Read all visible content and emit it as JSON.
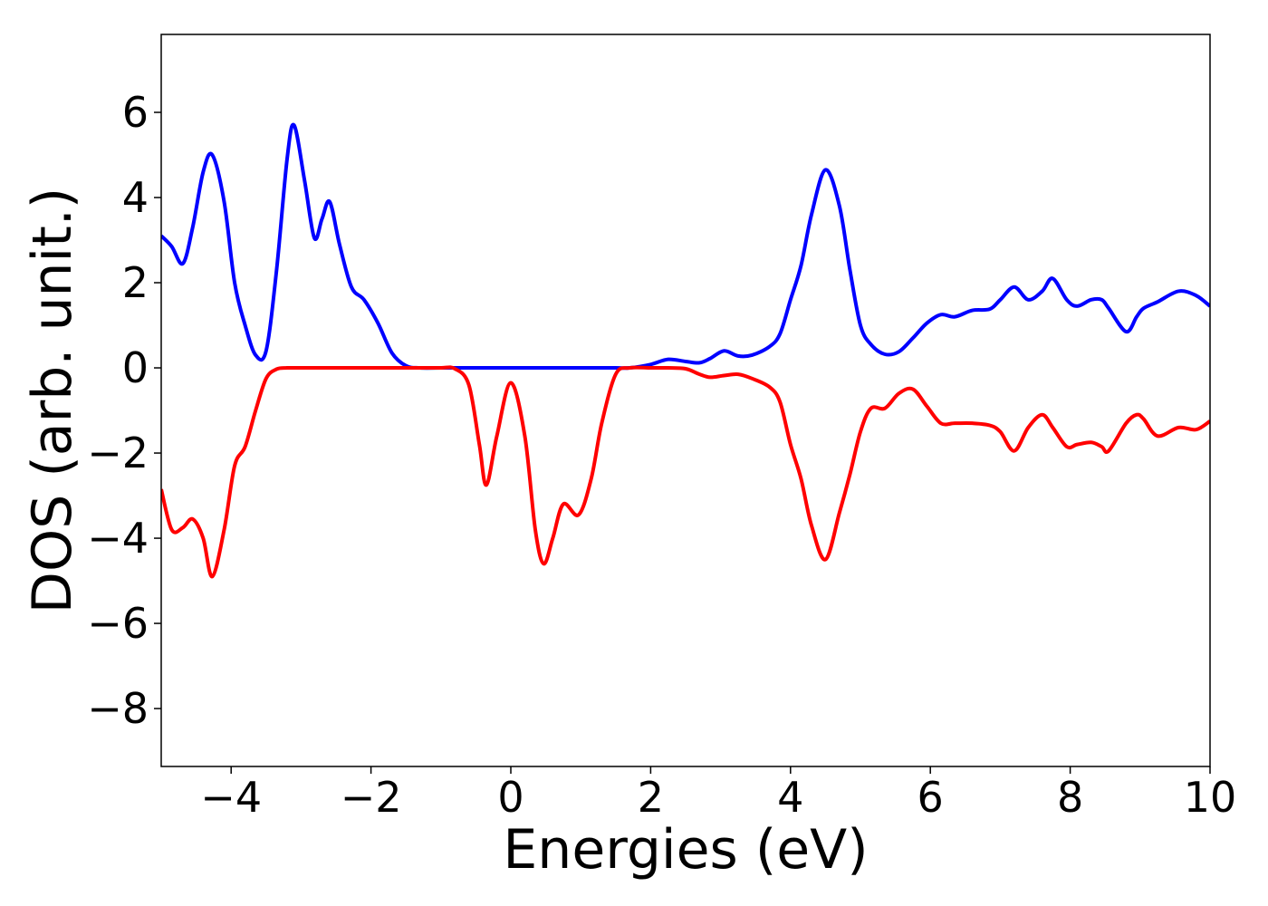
{
  "chart_data": {
    "type": "line",
    "xlabel": "Energies (eV)",
    "ylabel": "DOS (arb. unit.)",
    "x": [
      -5,
      -4.85,
      -4.69,
      -4.55,
      -4.4,
      -4.27,
      -4.1,
      -3.95,
      -3.8,
      -3.65,
      -3.5,
      -3.35,
      -3.2,
      -3.1,
      -2.95,
      -2.81,
      -2.7,
      -2.59,
      -2.45,
      -2.28,
      -2.1,
      -1.9,
      -1.7,
      -1.5,
      -1.3,
      -1,
      -0.8,
      -0.6,
      -0.45,
      -0.35,
      -0.2,
      0,
      0.2,
      0.35,
      0.47,
      0.6,
      0.75,
      0.97,
      1.15,
      1.3,
      1.5,
      1.7,
      2,
      2.25,
      2.5,
      2.7,
      2.85,
      3.05,
      3.25,
      3.45,
      3.7,
      3.85,
      4,
      4.15,
      4.3,
      4.5,
      4.7,
      4.85,
      5,
      5.15,
      5.35,
      5.55,
      5.75,
      5.95,
      6.15,
      6.35,
      6.6,
      6.85,
      7,
      7.2,
      7.4,
      7.6,
      7.75,
      7.95,
      8.1,
      8.3,
      8.45,
      8.55,
      8.8,
      8.95,
      9.05,
      9.25,
      9.55,
      9.8,
      10
    ],
    "series": [
      {
        "color": "#0000ff",
        "values": [
          3.1,
          2.85,
          2.45,
          3.3,
          4.6,
          5.0,
          3.9,
          2.0,
          1.0,
          0.3,
          0.4,
          2.3,
          4.9,
          5.7,
          4.4,
          3.05,
          3.5,
          3.9,
          2.9,
          1.9,
          1.6,
          1.05,
          0.35,
          0.05,
          0,
          0,
          0,
          0,
          0,
          0,
          0,
          0,
          0,
          0,
          0,
          0,
          0,
          0,
          0,
          0,
          0,
          0,
          0.08,
          0.2,
          0.15,
          0.12,
          0.22,
          0.4,
          0.28,
          0.3,
          0.5,
          0.8,
          1.6,
          2.4,
          3.6,
          4.65,
          3.8,
          2.3,
          1.0,
          0.55,
          0.32,
          0.38,
          0.7,
          1.05,
          1.25,
          1.2,
          1.35,
          1.38,
          1.6,
          1.9,
          1.6,
          1.8,
          2.1,
          1.6,
          1.45,
          1.6,
          1.6,
          1.4,
          0.85,
          1.2,
          1.4,
          1.55,
          1.8,
          1.7,
          1.45
        ]
      },
      {
        "color": "#ff0000",
        "values": [
          -2.85,
          -3.8,
          -3.75,
          -3.55,
          -4.0,
          -4.9,
          -3.8,
          -2.3,
          -1.85,
          -1.0,
          -0.25,
          -0.03,
          0,
          0,
          0,
          0,
          0,
          0,
          0,
          0,
          0,
          0,
          0,
          0,
          0,
          0,
          -0.02,
          -0.4,
          -1.8,
          -2.75,
          -1.6,
          -0.35,
          -1.6,
          -3.8,
          -4.6,
          -4.0,
          -3.2,
          -3.45,
          -2.6,
          -1.3,
          -0.15,
          0,
          0,
          0,
          -0.02,
          -0.15,
          -0.22,
          -0.18,
          -0.15,
          -0.25,
          -0.45,
          -0.8,
          -1.8,
          -2.6,
          -3.7,
          -4.5,
          -3.4,
          -2.5,
          -1.5,
          -0.95,
          -0.95,
          -0.6,
          -0.5,
          -0.9,
          -1.3,
          -1.3,
          -1.3,
          -1.35,
          -1.5,
          -1.95,
          -1.4,
          -1.1,
          -1.4,
          -1.85,
          -1.8,
          -1.75,
          -1.85,
          -1.95,
          -1.3,
          -1.1,
          -1.2,
          -1.6,
          -1.4,
          -1.45,
          -1.25
        ]
      }
    ],
    "xlim": [
      -5,
      10
    ],
    "xticks": [
      {
        "value": -4,
        "label": "−4"
      },
      {
        "value": -2,
        "label": "−2"
      },
      0,
      2,
      4,
      6,
      8,
      10
    ],
    "ylim": [
      -9.36,
      7.83
    ],
    "yticks": [
      {
        "value": -8,
        "label": "−8"
      },
      {
        "value": -6,
        "label": "−6"
      },
      {
        "value": -4,
        "label": "−4"
      },
      {
        "value": -2,
        "label": "−2"
      },
      0,
      2,
      4,
      6
    ],
    "grid": false
  }
}
